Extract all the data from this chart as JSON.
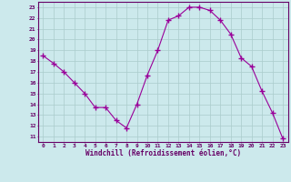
{
  "x": [
    0,
    1,
    2,
    3,
    4,
    5,
    6,
    7,
    8,
    9,
    10,
    11,
    12,
    13,
    14,
    15,
    16,
    17,
    18,
    19,
    20,
    21,
    22,
    23
  ],
  "y": [
    18.5,
    17.8,
    17.0,
    16.0,
    15.0,
    13.7,
    13.7,
    12.5,
    11.8,
    14.0,
    16.7,
    19.0,
    21.8,
    22.2,
    23.0,
    23.0,
    22.7,
    21.8,
    20.5,
    18.3,
    17.5,
    15.2,
    13.2,
    10.8
  ],
  "line_color": "#990099",
  "marker": "+",
  "marker_size": 4,
  "bg_color": "#cce9ec",
  "grid_color": "#aacccc",
  "xlabel": "Windchill (Refroidissement éolien,°C)",
  "xlabel_color": "#660066",
  "tick_color": "#660066",
  "spine_color": "#660066",
  "xlim": [
    -0.5,
    23.5
  ],
  "ylim": [
    10.5,
    23.5
  ],
  "yticks": [
    11,
    12,
    13,
    14,
    15,
    16,
    17,
    18,
    19,
    20,
    21,
    22,
    23
  ],
  "xticks": [
    0,
    1,
    2,
    3,
    4,
    5,
    6,
    7,
    8,
    9,
    10,
    11,
    12,
    13,
    14,
    15,
    16,
    17,
    18,
    19,
    20,
    21,
    22,
    23
  ]
}
